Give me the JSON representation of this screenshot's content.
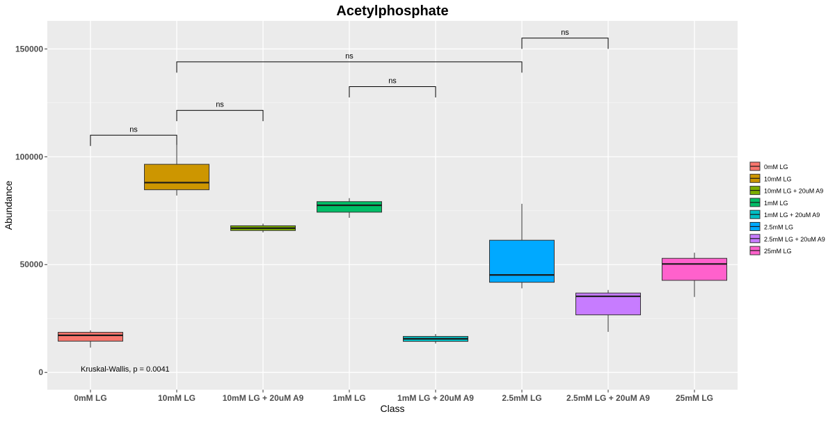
{
  "chart_data": {
    "type": "boxplot",
    "title": "Acetylphosphate",
    "xlabel": "Class",
    "ylabel": "Abundance",
    "ylim": [
      -8000,
      163000
    ],
    "y_ticks": [
      0,
      50000,
      100000,
      150000
    ],
    "y_tick_labels": [
      "0",
      "50000",
      "100000",
      "150000"
    ],
    "grid": true,
    "legend_position": "right",
    "categories": [
      "0mM LG",
      "10mM LG",
      "10mM LG + 20uM A9",
      "1mM LG",
      "1mM LG + 20uM A9",
      "2.5mM LG",
      "2.5mM LG + 20uM A9",
      "25mM LG"
    ],
    "series": [
      {
        "name": "0mM LG",
        "color": "#F8766D",
        "min": 11500,
        "q1": 14500,
        "median": 17200,
        "q3": 18600,
        "max": 19500
      },
      {
        "name": "10mM LG",
        "color": "#CD9600",
        "min": 82000,
        "q1": 84700,
        "median": 88000,
        "q3": 96500,
        "max": 105500
      },
      {
        "name": "10mM LG + 20uM A9",
        "color": "#7CAE00",
        "min": 64900,
        "q1": 65800,
        "median": 66900,
        "q3": 68000,
        "max": 69000
      },
      {
        "name": "1mM LG",
        "color": "#00BE67",
        "min": 71700,
        "q1": 74300,
        "median": 77500,
        "q3": 79200,
        "max": 80800
      },
      {
        "name": "1mM LG + 20uM A9",
        "color": "#00BFC4",
        "min": 13400,
        "q1": 14400,
        "median": 15600,
        "q3": 16700,
        "max": 17800
      },
      {
        "name": "2.5mM LG",
        "color": "#00A9FF",
        "min": 39000,
        "q1": 41800,
        "median": 45200,
        "q3": 61300,
        "max": 78200
      },
      {
        "name": "2.5mM LG + 20uM A9",
        "color": "#C77CFF",
        "min": 18800,
        "q1": 26700,
        "median": 35300,
        "q3": 36800,
        "max": 38200
      },
      {
        "name": "25mM LG",
        "color": "#FF61CC",
        "min": 35000,
        "q1": 42700,
        "median": 50300,
        "q3": 52900,
        "max": 55500
      }
    ],
    "comparisons": [
      {
        "from": "0mM LG",
        "to": "10mM LG",
        "y": 110000,
        "label": "ns"
      },
      {
        "from": "10mM LG",
        "to": "10mM LG + 20uM A9",
        "y": 121500,
        "label": "ns"
      },
      {
        "from": "1mM LG",
        "to": "1mM LG + 20uM A9",
        "y": 132500,
        "label": "ns"
      },
      {
        "from": "10mM LG",
        "to": "2.5mM LG",
        "y": 144000,
        "label": "ns"
      },
      {
        "from": "2.5mM LG",
        "to": "2.5mM LG + 20uM A9",
        "y": 155000,
        "label": "ns"
      }
    ],
    "annotation": "Kruskal-Wallis, p = 0.0041",
    "legend_entries": [
      "0mM LG",
      "10mM LG",
      "10mM LG + 20uM A9",
      "1mM LG",
      "1mM LG + 20uM A9",
      "2.5mM LG",
      "2.5mM LG + 20uM A9",
      "25mM LG"
    ],
    "colors": {
      "panel_background": "#EBEBEB",
      "grid_major": "#FFFFFF",
      "grid_minor": "#F5F5F5",
      "axis_text": "#4D4D4D"
    }
  }
}
